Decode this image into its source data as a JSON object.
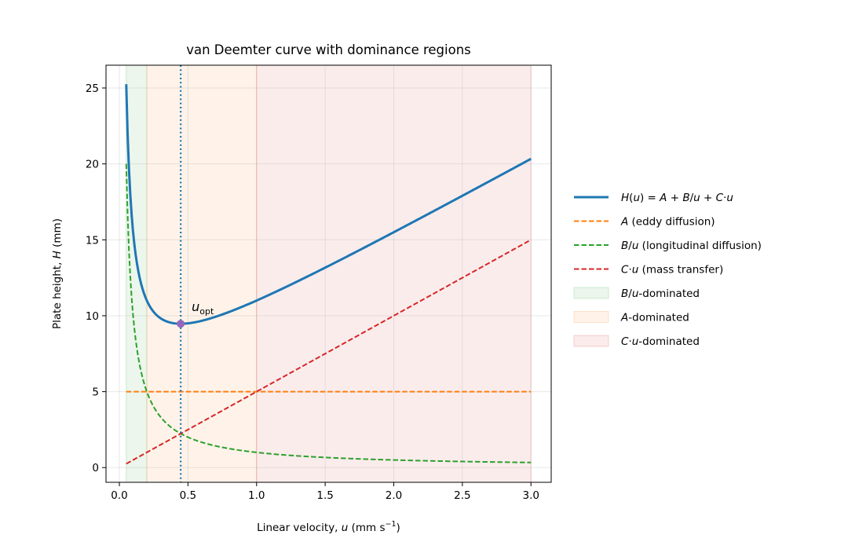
{
  "chart_data": {
    "type": "line",
    "title": "van Deemter curve with dominance regions",
    "xlabel": "Linear velocity, u (mm s⁻¹)",
    "ylabel": "Plate height, H (mm)",
    "xlim": [
      -0.0975,
      3.1475
    ],
    "ylim": [
      -0.97,
      26.5
    ],
    "xticks": [
      "0.0",
      "0.5",
      "1.0",
      "1.5",
      "2.0",
      "2.5",
      "3.0"
    ],
    "yticks": [
      "0",
      "5",
      "10",
      "15",
      "20",
      "25"
    ],
    "grid": true,
    "legend_position": "right-outside",
    "params": {
      "A": 5,
      "B": 1,
      "C": 5
    },
    "x_range": [
      0.05,
      3.0
    ],
    "series": [
      {
        "name": "H(u) = A + B/u + C·u",
        "color": "#1f77b4",
        "style": "solid",
        "x": [
          0.05,
          0.1,
          0.2,
          0.3,
          0.447,
          0.6,
          0.8,
          1.0,
          1.5,
          2.0,
          2.5,
          3.0
        ],
        "y": [
          25.25,
          15.5,
          11.0,
          9.83,
          9.47,
          9.67,
          10.25,
          11.0,
          13.17,
          15.5,
          17.9,
          20.33
        ]
      },
      {
        "name": "A (eddy diffusion)",
        "color": "#ff7f0e",
        "style": "dashed",
        "x": [
          0.05,
          3.0
        ],
        "y": [
          5,
          5
        ]
      },
      {
        "name": "B/u (longitudinal diffusion)",
        "color": "#2ca02c",
        "style": "dashed",
        "x": [
          0.05,
          0.1,
          0.2,
          0.3,
          0.447,
          0.6,
          0.8,
          1.0,
          1.5,
          2.0,
          2.5,
          3.0
        ],
        "y": [
          20.0,
          10.0,
          5.0,
          3.33,
          2.24,
          1.67,
          1.25,
          1.0,
          0.67,
          0.5,
          0.4,
          0.33
        ]
      },
      {
        "name": "C·u (mass transfer)",
        "color": "#d62728",
        "style": "dashed",
        "x": [
          0.05,
          3.0
        ],
        "y": [
          0.25,
          15.0
        ]
      }
    ],
    "regions": [
      {
        "name": "B/u-dominated",
        "color": "#2ca02c",
        "x0": 0.05,
        "x1": 0.2
      },
      {
        "name": "A-dominated",
        "color": "#ff7f0e",
        "x0": 0.2,
        "x1": 1.0
      },
      {
        "name": "C·u-dominated",
        "color": "#d62728",
        "x0": 1.0,
        "x1": 3.0
      }
    ],
    "optimum": {
      "label": "u_opt",
      "x": 0.447,
      "y": 9.47,
      "color": "#9467bd",
      "line_color": "#1f77b4"
    }
  }
}
